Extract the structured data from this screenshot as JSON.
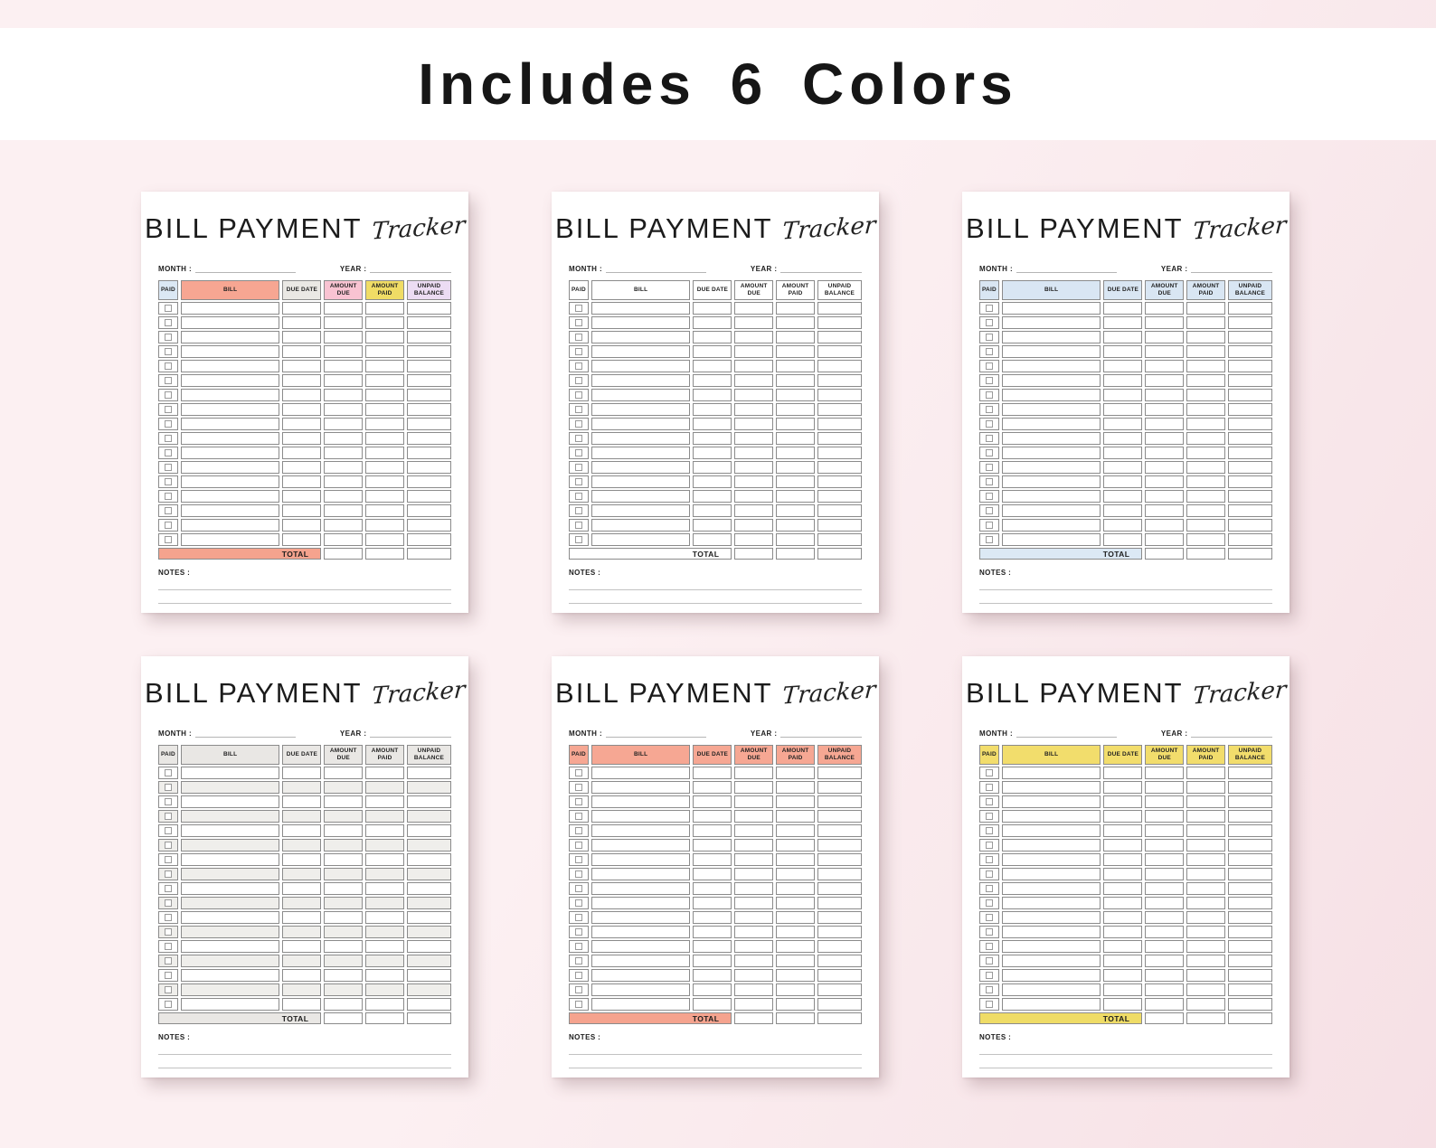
{
  "banner": {
    "title": "Includes 6 Colors"
  },
  "tracker": {
    "title_main": "BILL PAYMENT",
    "title_script": "Tracker",
    "month_label": "MONTH :",
    "year_label": "YEAR :",
    "columns": [
      "PAID",
      "BILL",
      "DUE DATE",
      "AMOUNT DUE",
      "AMOUNT PAID",
      "UNPAID BALANCE"
    ],
    "total_label": "TOTAL",
    "notes_label": "NOTES :",
    "row_count": 17,
    "notes_line_count": 2
  },
  "variants": [
    {
      "name": "multicolor",
      "header_colors": [
        "#dbe8f4",
        "#f7a692",
        "#eae8e4",
        "#f9c3d2",
        "#f0dc65",
        "#ecdcf3"
      ],
      "total_color": "#f5a38e",
      "row_alt_color": null
    },
    {
      "name": "white",
      "header_colors": [
        "#ffffff",
        "#ffffff",
        "#ffffff",
        "#ffffff",
        "#ffffff",
        "#ffffff"
      ],
      "total_color": "#ffffff",
      "row_alt_color": null
    },
    {
      "name": "blue",
      "header_colors": [
        "#d9e6f3",
        "#d9e6f3",
        "#d9e6f3",
        "#d9e6f3",
        "#d9e6f3",
        "#d9e6f3"
      ],
      "total_color": "#dce9f5",
      "row_alt_color": null
    },
    {
      "name": "gray",
      "header_colors": [
        "#e9e7e4",
        "#e9e7e4",
        "#e9e7e4",
        "#e9e7e4",
        "#e9e7e4",
        "#e9e7e4"
      ],
      "total_color": "#e9e7e4",
      "row_alt_color": "#efeeeb"
    },
    {
      "name": "coral",
      "header_colors": [
        "#f6a793",
        "#f6a793",
        "#f6a793",
        "#f6a793",
        "#f6a793",
        "#f6a793"
      ],
      "total_color": "#f5a38e",
      "row_alt_color": null
    },
    {
      "name": "yellow",
      "header_colors": [
        "#f2dd6c",
        "#f2dd6c",
        "#f2dd6c",
        "#f2dd6c",
        "#f2dd6c",
        "#f2dd6c"
      ],
      "total_color": "#efdc66",
      "row_alt_color": null
    }
  ],
  "colors": {
    "page_bg": "#fcf0f2",
    "page_bg_shade": "#f6e0e5",
    "banner_bg": "#ffffff",
    "banner_text": "#161616",
    "paper_bg": "#ffffff",
    "cell_border": "#8b8b8b",
    "checkbox_border": "#9a9a9a",
    "underline": "#b5b5b5",
    "text": "#1d1d1d"
  }
}
